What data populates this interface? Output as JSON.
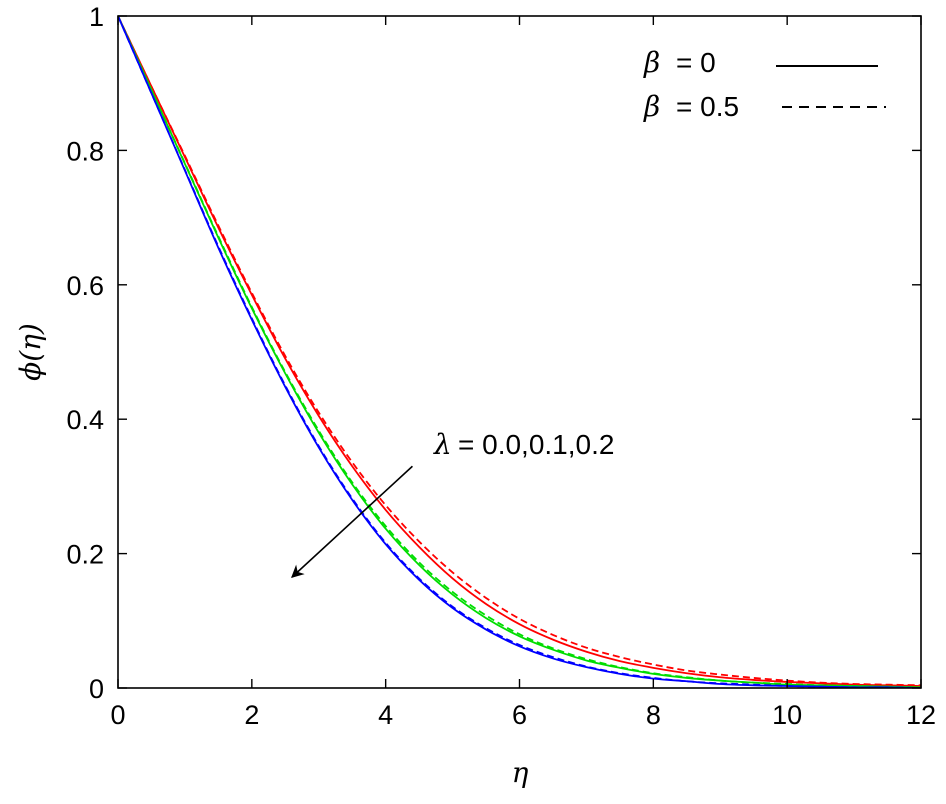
{
  "chart_data": {
    "type": "line",
    "xlabel": "η",
    "ylabel": "ϕ(η)",
    "xlim": [
      0,
      12
    ],
    "ylim": [
      0,
      1
    ],
    "xticks": [
      0,
      2,
      4,
      6,
      8,
      10,
      12
    ],
    "yticks": [
      0,
      0.2,
      0.4,
      0.6,
      0.8,
      1
    ],
    "ytick_labels": [
      "0",
      "0.2",
      "0.4",
      "0.6",
      "0.8",
      "1"
    ],
    "grid": false,
    "legend": {
      "placement": "top-right",
      "entries": [
        {
          "symbol": "β",
          "value": "= 0",
          "style": "solid"
        },
        {
          "symbol": "β",
          "value": "= 0.5",
          "style": "dashed"
        }
      ]
    },
    "annotation": {
      "symbol": "λ",
      "text": "= 0.0,0.1,0.2",
      "arrow_from": [
        4.4,
        0.33
      ],
      "arrow_to": [
        2.6,
        0.165
      ]
    },
    "x": [
      0,
      0.5,
      1,
      1.5,
      2,
      2.5,
      3,
      3.5,
      4,
      4.5,
      5,
      5.5,
      6,
      6.5,
      7,
      7.5,
      8,
      8.5,
      9,
      9.5,
      10,
      10.5,
      11,
      11.5,
      12
    ],
    "series": [
      {
        "color": "#ff0000",
        "style": "solid",
        "values": [
          1.0,
          0.895,
          0.79,
          0.685,
          0.585,
          0.49,
          0.405,
          0.33,
          0.265,
          0.21,
          0.163,
          0.125,
          0.095,
          0.072,
          0.054,
          0.04,
          0.03,
          0.022,
          0.016,
          0.012,
          0.009,
          0.007,
          0.005,
          0.004,
          0.003
        ]
      },
      {
        "color": "#ff0000",
        "style": "dashed",
        "values": [
          1.0,
          0.895,
          0.792,
          0.688,
          0.588,
          0.494,
          0.41,
          0.336,
          0.272,
          0.218,
          0.172,
          0.134,
          0.103,
          0.079,
          0.06,
          0.046,
          0.035,
          0.026,
          0.02,
          0.015,
          0.011,
          0.008,
          0.006,
          0.005,
          0.004
        ]
      },
      {
        "color": "#00dd00",
        "style": "solid",
        "values": [
          1.0,
          0.89,
          0.78,
          0.67,
          0.565,
          0.468,
          0.38,
          0.303,
          0.237,
          0.183,
          0.139,
          0.104,
          0.077,
          0.057,
          0.041,
          0.03,
          0.021,
          0.015,
          0.011,
          0.008,
          0.005,
          0.004,
          0.003,
          0.002,
          0.001
        ]
      },
      {
        "color": "#00dd00",
        "style": "dashed",
        "values": [
          1.0,
          0.89,
          0.781,
          0.672,
          0.567,
          0.47,
          0.383,
          0.306,
          0.241,
          0.187,
          0.143,
          0.108,
          0.08,
          0.059,
          0.043,
          0.031,
          0.022,
          0.016,
          0.011,
          0.008,
          0.006,
          0.004,
          0.003,
          0.002,
          0.001
        ]
      },
      {
        "color": "#0000ff",
        "style": "solid",
        "values": [
          1.0,
          0.885,
          0.77,
          0.655,
          0.548,
          0.448,
          0.358,
          0.28,
          0.214,
          0.161,
          0.119,
          0.087,
          0.062,
          0.044,
          0.031,
          0.021,
          0.014,
          0.01,
          0.006,
          0.004,
          0.003,
          0.002,
          0.001,
          0.001,
          0.0
        ]
      },
      {
        "color": "#0000ff",
        "style": "dashed",
        "values": [
          1.0,
          0.885,
          0.771,
          0.657,
          0.55,
          0.45,
          0.36,
          0.282,
          0.216,
          0.163,
          0.121,
          0.089,
          0.064,
          0.046,
          0.032,
          0.022,
          0.015,
          0.01,
          0.007,
          0.005,
          0.003,
          0.002,
          0.001,
          0.001,
          0.0
        ]
      }
    ]
  }
}
